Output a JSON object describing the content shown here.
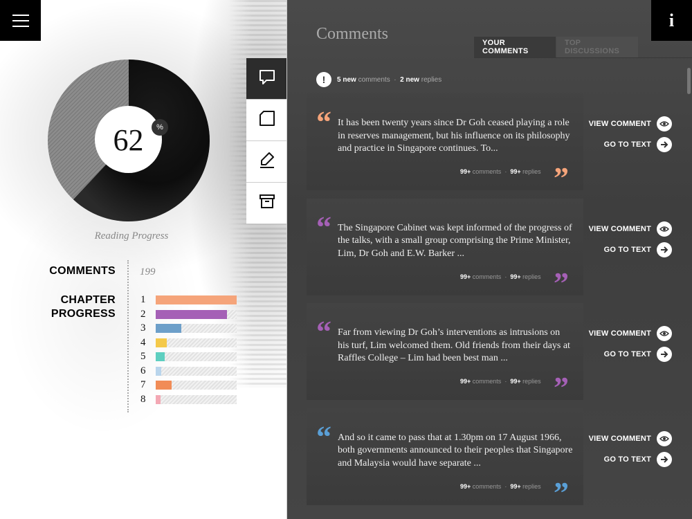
{
  "header": {
    "menu_icon": "hamburger-menu-icon",
    "info_label": "i"
  },
  "reading": {
    "percent": "62",
    "percent_value": 0.62,
    "percent_symbol": "%",
    "label": "Reading Progress",
    "colors": {
      "filled": "#111111",
      "remaining": "#8a8a8a"
    }
  },
  "stats": {
    "comments_label": "COMMENTS",
    "comments_count": "199",
    "chapter_label_line1": "CHAPTER",
    "chapter_label_line2": "PROGRESS",
    "chapters": [
      {
        "num": "1",
        "progress": 1.0,
        "color": "#f5a47a"
      },
      {
        "num": "2",
        "progress": 0.88,
        "color": "#a560b6"
      },
      {
        "num": "3",
        "progress": 0.32,
        "color": "#6d9fc9"
      },
      {
        "num": "4",
        "progress": 0.14,
        "color": "#f4c94a"
      },
      {
        "num": "5",
        "progress": 0.11,
        "color": "#5ecfc0"
      },
      {
        "num": "6",
        "progress": 0.07,
        "color": "#b9d5ec"
      },
      {
        "num": "7",
        "progress": 0.2,
        "color": "#f18c57"
      },
      {
        "num": "8",
        "progress": 0.06,
        "color": "#f3a8b4"
      }
    ]
  },
  "tools": [
    {
      "name": "speech-bubble-icon",
      "active": true
    },
    {
      "name": "note-icon",
      "active": false
    },
    {
      "name": "highlighter-icon",
      "active": false
    },
    {
      "name": "archive-icon",
      "active": false
    }
  ],
  "panel": {
    "title": "Comments",
    "tabs": {
      "your_comments": "YOUR COMMENTS",
      "top_discussions": "TOP DISCUSSIONS"
    },
    "alert": {
      "new_comments_count": "5 new",
      "new_comments_word": "comments",
      "separator": "·",
      "new_replies_count": "2 new",
      "new_replies_word": "replies"
    }
  },
  "comments": [
    {
      "text": "It has been twenty years since Dr Goh ceased playing a role in reserves management, but his influence on its philosophy and practice in Singapore continues. To...",
      "comments_count": "99+",
      "comments_word": "comments",
      "replies_count": "99+",
      "replies_word": "replies",
      "quote_color": "#f5a47a",
      "view_label": "VIEW COMMENT",
      "goto_label": "GO TO TEXT"
    },
    {
      "text": "The Singapore Cabinet was kept informed of the progress of the talks, with a small group comprising the Prime Minister, Lim, Dr Goh and E.W. Barker ...",
      "comments_count": "99+",
      "comments_word": "comments",
      "replies_count": "99+",
      "replies_word": "replies",
      "quote_color": "#a560b6",
      "view_label": "VIEW COMMENT",
      "goto_label": "GO TO TEXT"
    },
    {
      "text": "Far from viewing Dr Goh’s interventions as intrusions on his turf, Lim welcomed them. Old friends from their days at Raffles College – Lim had been best man ...",
      "comments_count": "99+",
      "comments_word": "comments",
      "replies_count": "99+",
      "replies_word": "replies",
      "quote_color": "#a560b6",
      "view_label": "VIEW COMMENT",
      "goto_label": "GO TO TEXT"
    },
    {
      "text": "And so it came to pass that at 1.30pm on 17 August 1966, both governments announced to their peoples that Singapore and Malaysia would have separate ...",
      "comments_count": "99+",
      "comments_word": "comments",
      "replies_count": "99+",
      "replies_word": "replies",
      "quote_color": "#5a9fd6",
      "view_label": "VIEW COMMENT",
      "goto_label": "GO TO TEXT"
    }
  ]
}
